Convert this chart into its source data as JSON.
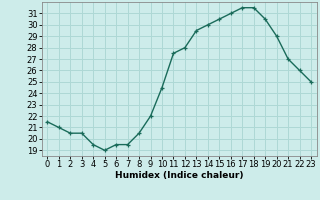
{
  "x": [
    0,
    1,
    2,
    3,
    4,
    5,
    6,
    7,
    8,
    9,
    10,
    11,
    12,
    13,
    14,
    15,
    16,
    17,
    18,
    19,
    20,
    21,
    22,
    23
  ],
  "y": [
    21.5,
    21.0,
    20.5,
    20.5,
    19.5,
    19.0,
    19.5,
    19.5,
    20.5,
    22.0,
    24.5,
    27.5,
    28.0,
    29.5,
    30.0,
    30.5,
    31.0,
    31.5,
    31.5,
    30.5,
    29.0,
    27.0,
    26.0,
    25.0
  ],
  "line_color": "#1a6b5a",
  "marker": "+",
  "marker_size": 3.5,
  "bg_color": "#cdecea",
  "grid_color": "#aed8d5",
  "xlabel": "Humidex (Indice chaleur)",
  "xlim": [
    -0.5,
    23.5
  ],
  "ylim": [
    18.5,
    32.0
  ],
  "yticks": [
    19,
    20,
    21,
    22,
    23,
    24,
    25,
    26,
    27,
    28,
    29,
    30,
    31
  ],
  "xticks": [
    0,
    1,
    2,
    3,
    4,
    5,
    6,
    7,
    8,
    9,
    10,
    11,
    12,
    13,
    14,
    15,
    16,
    17,
    18,
    19,
    20,
    21,
    22,
    23
  ],
  "label_fontsize": 6.5,
  "tick_fontsize": 6.0
}
